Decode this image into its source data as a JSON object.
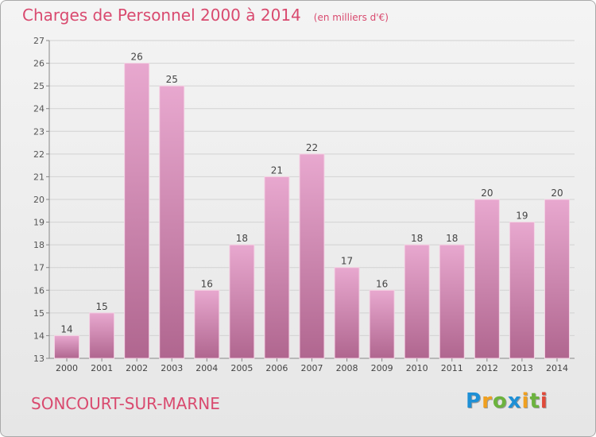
{
  "title": "Charges de Personnel 2000 à 2014",
  "subtitle": "(en milliers d'€)",
  "commune": "SONCOURT-SUR-MARNE",
  "logo": {
    "letters": [
      "P",
      "r",
      "o",
      "x",
      "i",
      "t",
      "i"
    ],
    "colors": [
      "#1e90d6",
      "#f0a020",
      "#6cb33e",
      "#1e90d6",
      "#f0a020",
      "#6cb33e",
      "#e04a3a"
    ]
  },
  "colors": {
    "bar_top": "#e8a8cf",
    "bar_bottom": "#b0668f",
    "text": "#d94a6f"
  },
  "chart_data": {
    "type": "bar",
    "categories": [
      "2000",
      "2001",
      "2002",
      "2003",
      "2004",
      "2005",
      "2006",
      "2007",
      "2008",
      "2009",
      "2010",
      "2011",
      "2012",
      "2013",
      "2014"
    ],
    "values": [
      14,
      15,
      26,
      25,
      16,
      18,
      21,
      22,
      17,
      16,
      18,
      18,
      20,
      19,
      20
    ],
    "title": "Charges de Personnel 2000 à 2014",
    "subtitle": "(en milliers d'€)",
    "ylim": [
      13,
      27
    ],
    "yticks": [
      13,
      14,
      15,
      16,
      17,
      18,
      19,
      20,
      21,
      22,
      23,
      24,
      25,
      26,
      27
    ],
    "grid": true
  }
}
